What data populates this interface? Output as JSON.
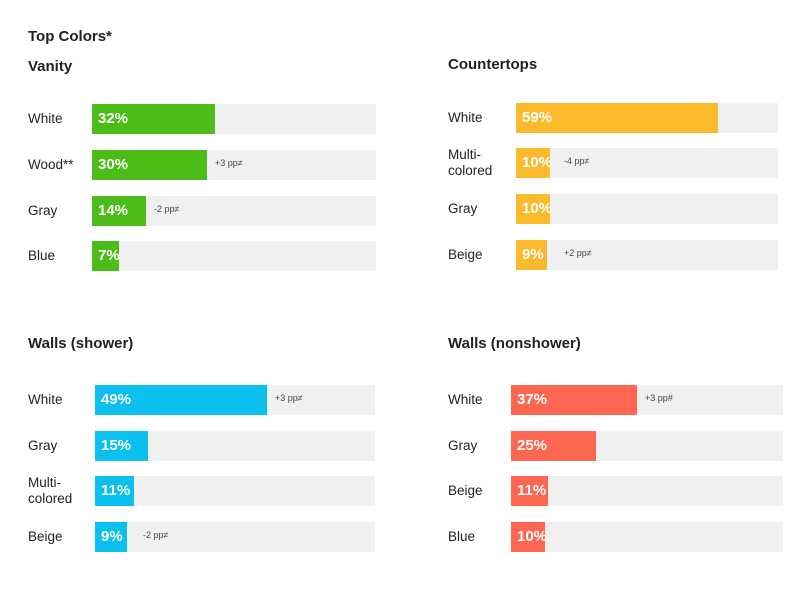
{
  "title": "Top Colors*",
  "chart_data": [
    {
      "type": "bar",
      "title": "Vanity",
      "color": "#4cbc19",
      "categories": [
        "White",
        "Wood**",
        "Gray",
        "Blue"
      ],
      "values": [
        32,
        30,
        14,
        7
      ],
      "value_labels": [
        "32%",
        "30%",
        "14%",
        "7%"
      ],
      "annotations": [
        "",
        "+3 pp≠",
        "-2 pp≠",
        ""
      ],
      "xlim": [
        0,
        100
      ]
    },
    {
      "type": "bar",
      "title": "Countertops",
      "color": "#fbba2b",
      "categories": [
        "White",
        "Multi-\ncolored",
        "Gray",
        "Beige"
      ],
      "values": [
        59,
        10,
        10,
        9
      ],
      "value_labels": [
        "59%",
        "10%",
        "10%",
        "9%"
      ],
      "annotations": [
        "",
        "-4 pp≠",
        "",
        "+2 pp≠"
      ],
      "xlim": [
        0,
        100
      ]
    },
    {
      "type": "bar",
      "title": "Walls (shower)",
      "color": "#0bc0ee",
      "categories": [
        "White",
        "Gray",
        "Multi-\ncolored",
        "Beige"
      ],
      "values": [
        49,
        15,
        11,
        9
      ],
      "value_labels": [
        "49%",
        "15%",
        "11%",
        "9%"
      ],
      "annotations": [
        "+3 pp≠",
        "",
        "",
        "-2 pp≠"
      ],
      "xlim": [
        0,
        100
      ]
    },
    {
      "type": "bar",
      "title": "Walls (nonshower)",
      "color": "#fd6751",
      "categories": [
        "White",
        "Gray",
        "Beige",
        "Blue"
      ],
      "values": [
        37,
        25,
        11,
        10
      ],
      "value_labels": [
        "37%",
        "25%",
        "11%",
        "10%"
      ],
      "annotations": [
        "+3 pp#",
        "",
        "",
        ""
      ],
      "xlim": [
        0,
        100
      ]
    }
  ]
}
